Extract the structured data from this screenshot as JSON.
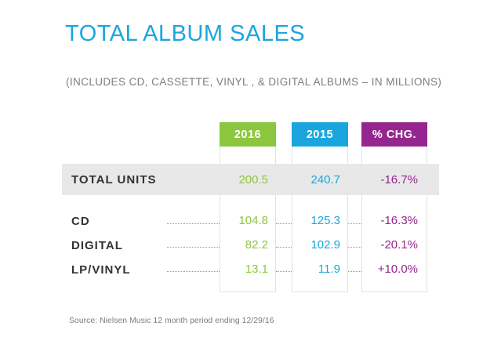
{
  "title": "TOTAL ALBUM SALES",
  "subtitle": "(INCLUDES CD, CASSETTE, VINYL , & DIGITAL ALBUMS – IN MILLIONS)",
  "source": "Source: Nielsen Music 12 month period ending 12/29/16",
  "colors": {
    "col_2016": "#8cc63f",
    "col_2015": "#1aa6dd",
    "col_chg": "#96268f",
    "title": "#1aa6dd"
  },
  "chart_data": {
    "type": "table",
    "title": "TOTAL ALBUM SALES",
    "columns": [
      "2016",
      "2015",
      "% CHG."
    ],
    "total": {
      "label": "TOTAL UNITS",
      "values": [
        "200.5",
        "240.7",
        "-16.7%"
      ]
    },
    "rows": [
      {
        "label": "CD",
        "values": [
          "104.8",
          "125.3",
          "-16.3%"
        ]
      },
      {
        "label": "DIGITAL",
        "values": [
          "82.2",
          "102.9",
          "-20.1%"
        ]
      },
      {
        "label": "LP/VINYL",
        "values": [
          "13.1",
          "11.9",
          "+10.0%"
        ]
      }
    ]
  }
}
